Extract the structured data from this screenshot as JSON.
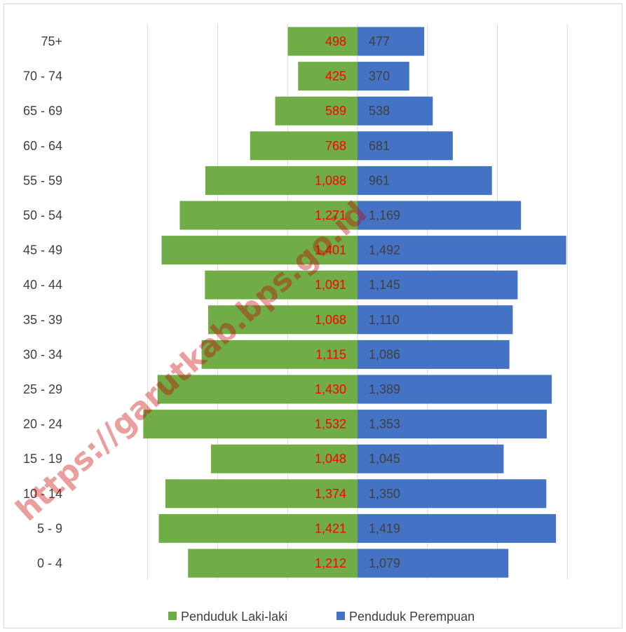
{
  "colors": {
    "male": "#70ad47",
    "female": "#4472c4",
    "male_label": "#ff0000",
    "female_label": "#404040",
    "grid": "#d9d9d9",
    "border": "#d9d9d9",
    "watermark": "#c00000"
  },
  "watermark": "https://garutkab.bps.go.id",
  "chart_data": {
    "type": "bar",
    "orientation": "horizontal-population-pyramid",
    "title": "",
    "xlabel": "",
    "ylabel": "",
    "xlim": [
      -1500,
      1500
    ],
    "grid": true,
    "legend": "bottom",
    "categories": [
      "75+",
      "70 - 74",
      "65 - 69",
      "60 - 64",
      "55 - 59",
      "50 - 54",
      "45 - 49",
      "40 - 44",
      "35 - 39",
      "30 - 34",
      "25 - 29",
      "20 - 24",
      "15 - 19",
      "10 - 14",
      "5 - 9",
      "0 - 4"
    ],
    "series": [
      {
        "name": "Penduduk Laki-laki",
        "values": [
          498,
          425,
          589,
          768,
          1088,
          1271,
          1401,
          1091,
          1068,
          1115,
          1430,
          1532,
          1048,
          1374,
          1421,
          1212
        ],
        "labels": [
          "498",
          "425",
          "589",
          "768",
          "1,088",
          "1,271",
          "1,401",
          "1,091",
          "1,068",
          "1,115",
          "1,430",
          "1,532",
          "1,048",
          "1,374",
          "1,421",
          "1,212"
        ]
      },
      {
        "name": "Penduduk Perempuan",
        "values": [
          477,
          370,
          538,
          681,
          961,
          1169,
          1492,
          1145,
          1110,
          1086,
          1389,
          1353,
          1045,
          1350,
          1419,
          1079
        ],
        "labels": [
          "477",
          "370",
          "538",
          "681",
          "961",
          "1,169",
          "1,492",
          "1,145",
          "1,110",
          "1,086",
          "1,389",
          "1,353",
          "1,045",
          "1,350",
          "1,419",
          "1,079"
        ]
      }
    ]
  }
}
